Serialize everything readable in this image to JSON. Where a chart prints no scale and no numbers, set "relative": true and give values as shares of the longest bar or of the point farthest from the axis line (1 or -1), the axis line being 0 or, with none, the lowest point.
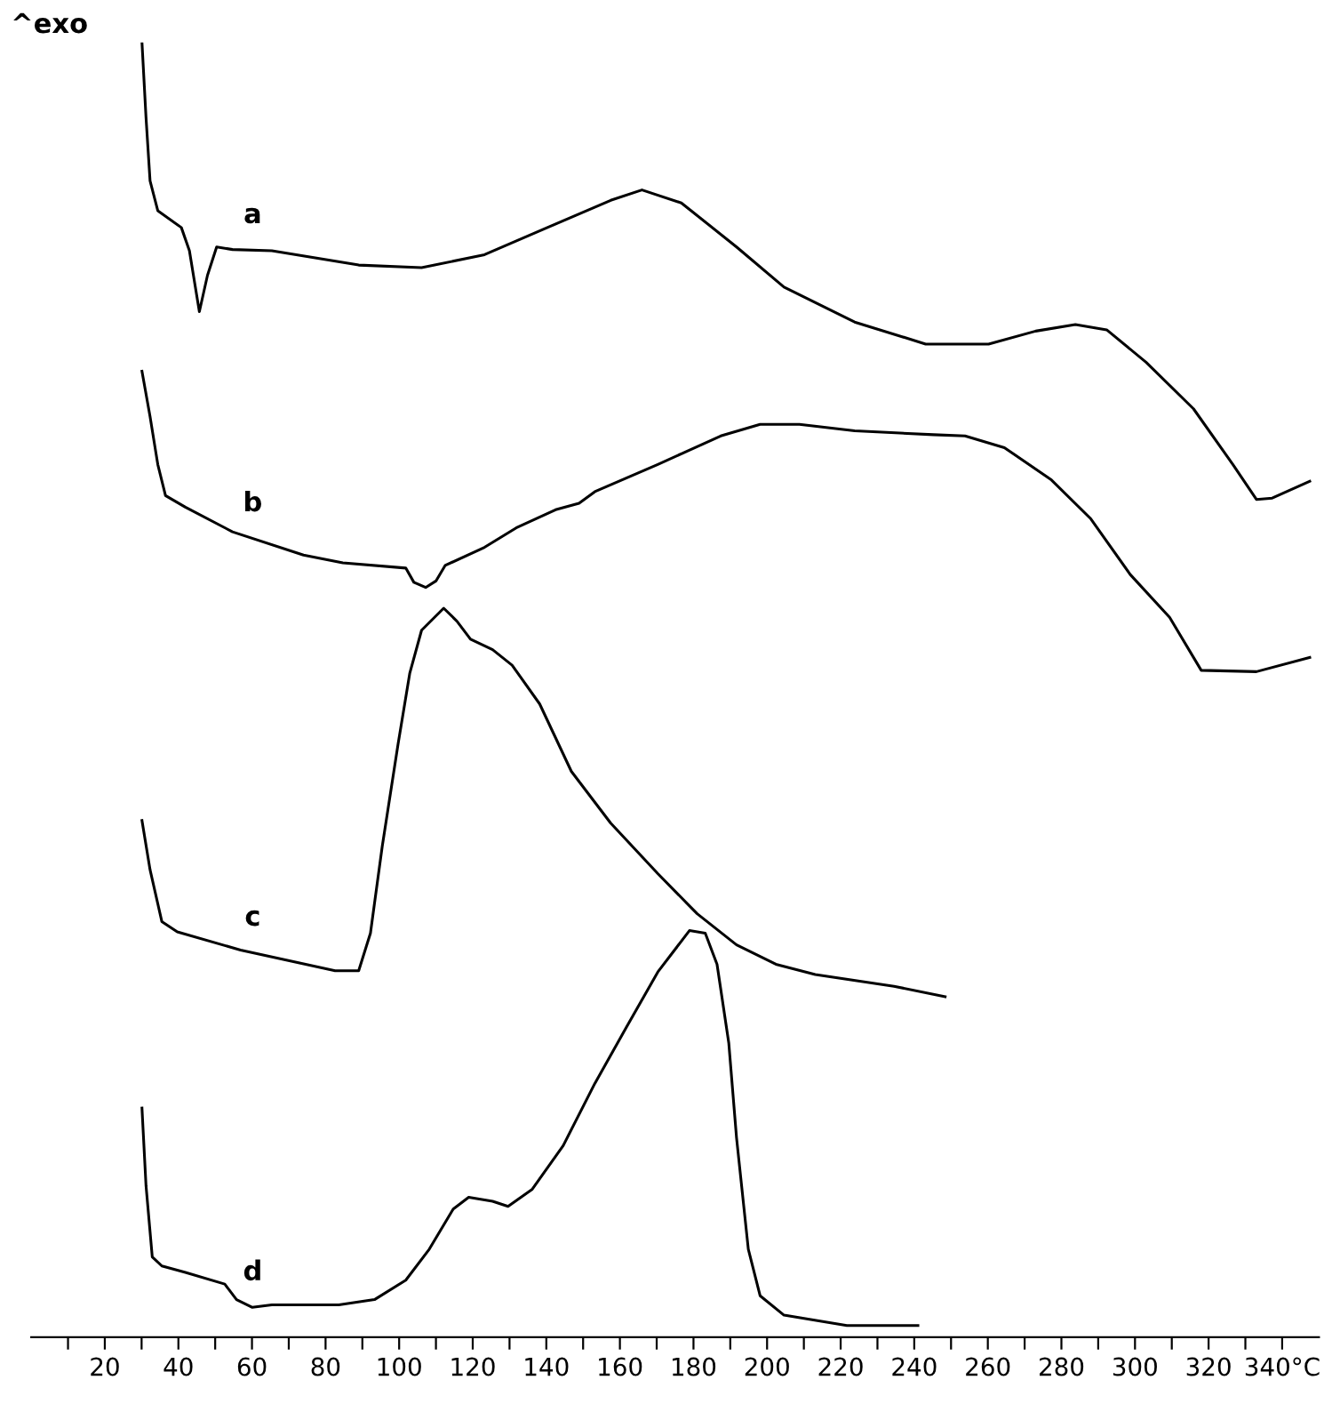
{
  "chart_data": {
    "type": "line",
    "relative": true,
    "annotations": [
      "^exo"
    ],
    "xlim": [
      0,
      350
    ],
    "xticks": [
      {
        "value": 10,
        "label": null
      },
      20,
      {
        "value": 30,
        "label": null
      },
      40,
      {
        "value": 50,
        "label": null
      },
      60,
      {
        "value": 70,
        "label": null
      },
      80,
      {
        "value": 90,
        "label": null
      },
      100,
      {
        "value": 110,
        "label": null
      },
      120,
      {
        "value": 130,
        "label": null
      },
      140,
      {
        "value": 150,
        "label": null
      },
      160,
      {
        "value": 170,
        "label": null
      },
      180,
      {
        "value": 190,
        "label": null
      },
      200,
      {
        "value": 210,
        "label": null
      },
      220,
      {
        "value": 230,
        "label": null
      },
      240,
      {
        "value": 250,
        "label": null
      },
      260,
      {
        "value": 270,
        "label": null
      },
      280,
      {
        "value": 290,
        "label": null
      },
      300,
      {
        "value": 310,
        "label": null
      },
      320,
      {
        "value": 330,
        "label": null
      },
      {
        "value": 340,
        "label": "340°C"
      }
    ],
    "tick_labels": "x",
    "grid": false,
    "legend": false,
    "marker": "none",
    "line_style": "solid",
    "series": [
      {
        "name": "a",
        "color": "#000000",
        "x": [
          30.1,
          31.2,
          32.3,
          34.4,
          40.8,
          43,
          45.7,
          47.9,
          50.4,
          54.7,
          65.4,
          89,
          106.1,
          123.2,
          140.3,
          157.5,
          166,
          176.7,
          191.7,
          204.6,
          223.8,
          243.1,
          260.2,
          273,
          283.8,
          292.3,
          303,
          315.9,
          326.6,
          333,
          337.3,
          347.5
        ],
        "values": [
          1.0,
          0.942,
          0.893,
          0.87,
          0.857,
          0.839,
          0.792,
          0.82,
          0.842,
          0.84,
          0.839,
          0.828,
          0.826,
          0.836,
          0.857,
          0.878,
          0.886,
          0.876,
          0.842,
          0.811,
          0.784,
          0.767,
          0.767,
          0.777,
          0.782,
          0.778,
          0.753,
          0.717,
          0.674,
          0.647,
          0.648,
          0.661
        ]
      },
      {
        "name": "b",
        "color": "#000000",
        "x": [
          30.1,
          32.3,
          34.4,
          36.5,
          41.9,
          54.7,
          74,
          84.7,
          101.8,
          104,
          107.2,
          110,
          112.5,
          123.2,
          131.8,
          142.5,
          148.9,
          153.2,
          170.3,
          187.4,
          198.1,
          208.8,
          223.8,
          245.2,
          253.8,
          264.5,
          277.3,
          288,
          298.7,
          309.4,
          318,
          333,
          347.5
        ],
        "values": [
          0.746,
          0.711,
          0.674,
          0.65,
          0.641,
          0.622,
          0.604,
          0.598,
          0.594,
          0.583,
          0.579,
          0.584,
          0.596,
          0.61,
          0.625,
          0.639,
          0.644,
          0.653,
          0.674,
          0.696,
          0.705,
          0.705,
          0.7,
          0.697,
          0.696,
          0.687,
          0.662,
          0.632,
          0.589,
          0.556,
          0.515,
          0.514,
          0.525
        ]
      },
      {
        "name": "c",
        "color": "#000000",
        "x": [
          30.1,
          32.3,
          35.5,
          39.7,
          56.9,
          82.6,
          89,
          92.2,
          95.4,
          99.7,
          102.9,
          106.1,
          112.1,
          115.7,
          119.4,
          125.4,
          130.7,
          138.2,
          146.8,
          157.5,
          170.3,
          181,
          191.7,
          202.4,
          213.1,
          234.5,
          248.4
        ],
        "values": [
          0.399,
          0.361,
          0.321,
          0.313,
          0.299,
          0.283,
          0.283,
          0.312,
          0.379,
          0.458,
          0.513,
          0.546,
          0.563,
          0.553,
          0.539,
          0.531,
          0.519,
          0.489,
          0.437,
          0.397,
          0.358,
          0.327,
          0.303,
          0.288,
          0.28,
          0.271,
          0.263
        ]
      },
      {
        "name": "d",
        "color": "#000000",
        "x": [
          30.1,
          31.2,
          32.9,
          35.5,
          41.9,
          52.6,
          55.8,
          60.1,
          65.4,
          83.6,
          93.3,
          101.8,
          108.2,
          114.7,
          118.9,
          125.4,
          129.6,
          136.1,
          144.6,
          153.2,
          161.7,
          170.3,
          178.9,
          183.2,
          186.4,
          189.6,
          191.7,
          194.9,
          198.1,
          204.6,
          221.7,
          241
        ],
        "values": [
          0.177,
          0.117,
          0.062,
          0.055,
          0.05,
          0.041,
          0.029,
          0.023,
          0.025,
          0.025,
          0.029,
          0.044,
          0.068,
          0.099,
          0.108,
          0.105,
          0.101,
          0.114,
          0.148,
          0.196,
          0.239,
          0.282,
          0.314,
          0.312,
          0.288,
          0.227,
          0.154,
          0.068,
          0.032,
          0.017,
          0.009,
          0.009
        ]
      }
    ]
  }
}
